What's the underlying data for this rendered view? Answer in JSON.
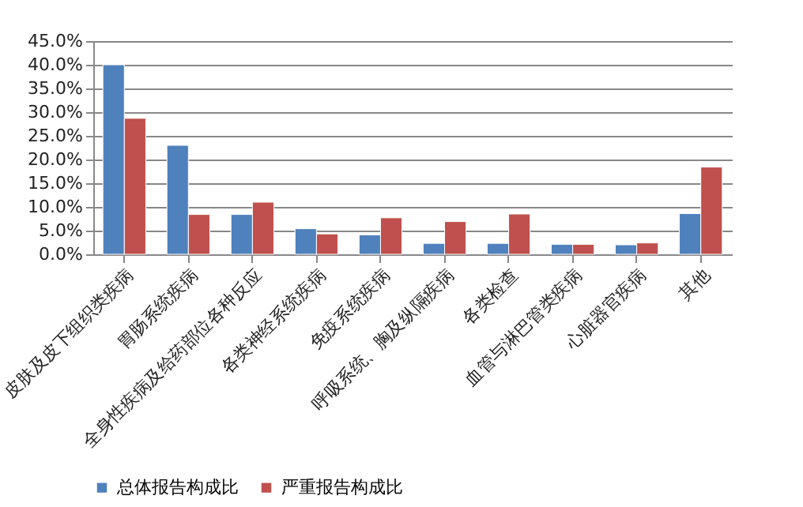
{
  "chart_data": {
    "type": "bar",
    "categories": [
      "皮肤及皮下组织类疾病",
      "胃肠系统疾病",
      "全身性疾病及给药部位各种反应",
      "各类神经系统疾病",
      "免疫系统疾病",
      "呼吸系统、胸及纵隔疾病",
      "各类检查",
      "血管与淋巴管类疾病",
      "心脏器官疾病",
      "其他"
    ],
    "series": [
      {
        "name": "总体报告构成比",
        "color": "#4f81bd",
        "values": [
          40.0,
          23.0,
          8.4,
          5.4,
          4.1,
          2.3,
          2.3,
          2.1,
          2.0,
          8.6
        ]
      },
      {
        "name": "严重报告构成比",
        "color": "#c0504d",
        "values": [
          28.7,
          8.4,
          11.0,
          4.3,
          7.7,
          6.9,
          8.5,
          2.1,
          2.4,
          18.4
        ]
      }
    ],
    "ylim": [
      0,
      45
    ],
    "yticks": [
      {
        "value": 0,
        "label": "0.0%"
      },
      {
        "value": 5,
        "label": "5.0%"
      },
      {
        "value": 10,
        "label": "10.0%"
      },
      {
        "value": 15,
        "label": "15.0%"
      },
      {
        "value": 20,
        "label": "20.0%"
      },
      {
        "value": 25,
        "label": "25.0%"
      },
      {
        "value": 30,
        "label": "30.0%"
      },
      {
        "value": 35,
        "label": "35.0%"
      },
      {
        "value": 40,
        "label": "40.0%"
      },
      {
        "value": 45,
        "label": "45.0%"
      }
    ],
    "grid": "y",
    "legend": "bottom"
  }
}
